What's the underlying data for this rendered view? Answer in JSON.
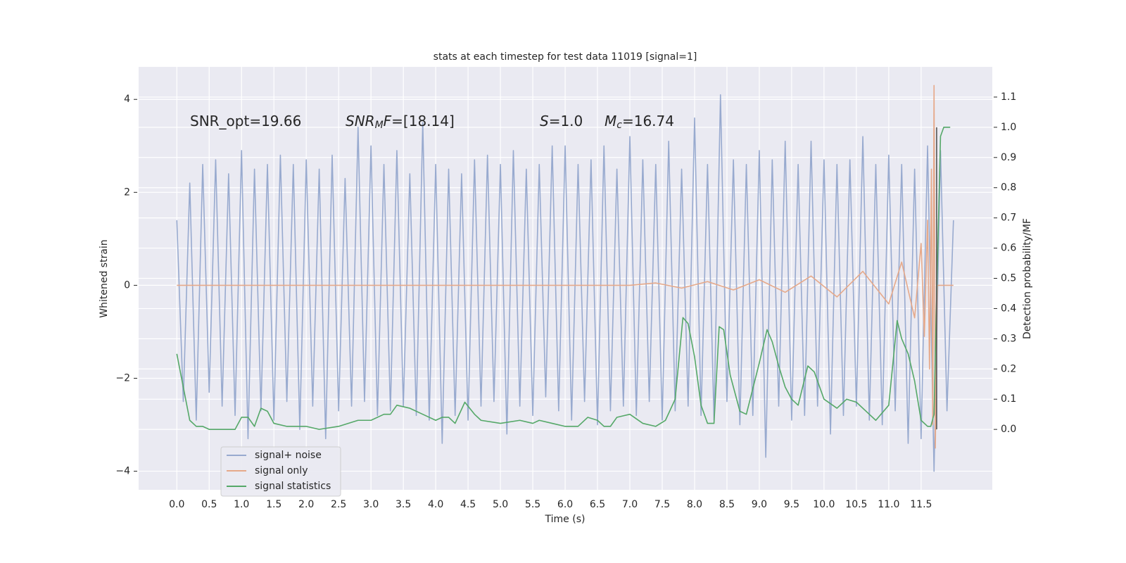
{
  "chart_data": {
    "type": "line",
    "title": "stats at each timestep for test data 11019 [signal=1]",
    "x_label": "Time (s)",
    "y_label": "Whitened strain",
    "y2_label": "Detection probability/MF",
    "xlim": [
      -0.59,
      12.6
    ],
    "ylim": [
      -4.4,
      4.7
    ],
    "y2lim": [
      -0.2,
      1.2
    ],
    "xticks": [
      {
        "value": 0,
        "label": "0.0"
      },
      0.5,
      {
        "value": 1,
        "label": "1.0"
      },
      1.5,
      {
        "value": 2,
        "label": "2.0"
      },
      2.5,
      {
        "value": 3,
        "label": "3.0"
      },
      3.5,
      {
        "value": 4,
        "label": "4.0"
      },
      4.5,
      {
        "value": 5,
        "label": "5.0"
      },
      5.5,
      {
        "value": 6,
        "label": "6.0"
      },
      6.5,
      {
        "value": 7,
        "label": "7.0"
      },
      7.5,
      {
        "value": 8,
        "label": "8.0"
      },
      8.5,
      {
        "value": 9,
        "label": "9.0"
      },
      9.5,
      {
        "value": 10,
        "label": "10.0"
      },
      10.5,
      {
        "value": 11,
        "label": "11.0"
      },
      11.5
    ],
    "yticks": [
      {
        "value": -4,
        "label": "−4"
      },
      {
        "value": -2,
        "label": "−2"
      },
      0,
      2,
      4
    ],
    "y2ticks": [
      {
        "value": 0,
        "label": "0.0"
      },
      0.1,
      0.2,
      0.3,
      0.4,
      0.5,
      0.6,
      0.7,
      0.8,
      0.9,
      {
        "value": 1,
        "label": "1.0"
      },
      1.1
    ],
    "grid": true,
    "legend": "lower left",
    "series": [
      {
        "name": "signal+ noise",
        "color": "#98aacf",
        "x": [
          0,
          0.1,
          0.2,
          0.3,
          0.4,
          0.5,
          0.6,
          0.7,
          0.8,
          0.9,
          1.0,
          1.1,
          1.2,
          1.3,
          1.4,
          1.5,
          1.6,
          1.7,
          1.8,
          1.9,
          2.0,
          2.1,
          2.2,
          2.3,
          2.4,
          2.5,
          2.6,
          2.7,
          2.8,
          2.9,
          3.0,
          3.1,
          3.2,
          3.3,
          3.4,
          3.5,
          3.6,
          3.7,
          3.8,
          3.9,
          4.0,
          4.1,
          4.2,
          4.3,
          4.4,
          4.5,
          4.6,
          4.7,
          4.8,
          4.9,
          5.0,
          5.1,
          5.2,
          5.3,
          5.4,
          5.5,
          5.6,
          5.7,
          5.8,
          5.9,
          6.0,
          6.1,
          6.2,
          6.3,
          6.4,
          6.5,
          6.6,
          6.7,
          6.8,
          6.9,
          7.0,
          7.1,
          7.2,
          7.3,
          7.4,
          7.5,
          7.6,
          7.7,
          7.8,
          7.9,
          8.0,
          8.1,
          8.2,
          8.3,
          8.4,
          8.5,
          8.6,
          8.7,
          8.8,
          8.9,
          9.0,
          9.1,
          9.2,
          9.3,
          9.4,
          9.5,
          9.6,
          9.7,
          9.8,
          9.9,
          10.0,
          10.1,
          10.2,
          10.3,
          10.4,
          10.5,
          10.6,
          10.7,
          10.8,
          10.9,
          11.0,
          11.1,
          11.2,
          11.3,
          11.4,
          11.5,
          11.6,
          11.7,
          11.8,
          11.9,
          12.0
        ],
        "values": [
          1.4,
          -2.5,
          2.2,
          -2.9,
          2.6,
          -2.3,
          2.7,
          -2.6,
          2.4,
          -2.8,
          2.9,
          -3.3,
          2.5,
          -2.7,
          2.6,
          -2.9,
          2.8,
          -2.5,
          2.6,
          -3.1,
          2.7,
          -2.6,
          2.5,
          -3.3,
          2.8,
          -2.7,
          2.3,
          -2.6,
          3.4,
          -2.5,
          3.0,
          -2.8,
          2.6,
          -2.7,
          2.9,
          -2.6,
          2.4,
          -2.8,
          3.5,
          -2.9,
          2.6,
          -3.4,
          2.5,
          -2.8,
          2.4,
          -2.9,
          2.7,
          -2.6,
          2.8,
          -2.5,
          2.6,
          -3.2,
          2.9,
          -2.6,
          2.5,
          -2.8,
          2.6,
          -2.4,
          3.0,
          -2.7,
          3.0,
          -2.9,
          2.6,
          -2.5,
          2.7,
          -3.0,
          3.0,
          -2.7,
          2.5,
          -2.6,
          3.2,
          -2.8,
          2.7,
          -2.5,
          2.6,
          -2.9,
          3.1,
          -2.7,
          2.5,
          -2.6,
          3.6,
          -2.8,
          2.6,
          -2.9,
          4.1,
          -2.5,
          2.7,
          -3.0,
          2.6,
          -2.8,
          2.9,
          -3.7,
          2.7,
          -2.6,
          3.1,
          -2.9,
          2.6,
          -2.8,
          3.1,
          -2.6,
          2.7,
          -3.2,
          2.6,
          -2.8,
          2.7,
          -2.6,
          3.2,
          -2.9,
          2.6,
          -3.0,
          2.8,
          -2.7,
          2.6,
          -3.4,
          2.5,
          -3.3,
          3.0,
          -4.0,
          2.9,
          -2.7,
          1.4
        ]
      },
      {
        "name": "signal only",
        "color": "#e6a98a",
        "x": [
          0,
          7.0,
          7.4,
          7.8,
          8.2,
          8.6,
          9.0,
          9.4,
          9.8,
          10.2,
          10.6,
          11.0,
          11.2,
          11.4,
          11.5,
          11.55,
          11.6,
          11.63,
          11.66,
          11.68,
          11.7,
          11.72,
          11.75,
          12.0
        ],
        "values": [
          0,
          0,
          0.05,
          -0.06,
          0.08,
          -0.1,
          0.12,
          -0.15,
          0.2,
          -0.25,
          0.3,
          -0.4,
          0.5,
          -0.7,
          0.9,
          -1.1,
          1.4,
          -1.8,
          2.5,
          -3.0,
          4.3,
          -3.5,
          0,
          0
        ]
      },
      {
        "name": "signal statistics",
        "color": "#55a868",
        "axis": "y2",
        "x": [
          0,
          0.1,
          0.2,
          0.3,
          0.4,
          0.5,
          0.7,
          0.9,
          1.0,
          1.1,
          1.2,
          1.3,
          1.4,
          1.5,
          1.7,
          2.0,
          2.2,
          2.5,
          2.8,
          3.0,
          3.2,
          3.3,
          3.4,
          3.6,
          3.8,
          4.0,
          4.1,
          4.2,
          4.3,
          4.45,
          4.6,
          4.7,
          5.0,
          5.3,
          5.5,
          5.6,
          5.8,
          6.0,
          6.2,
          6.35,
          6.5,
          6.6,
          6.7,
          6.8,
          7.0,
          7.2,
          7.4,
          7.55,
          7.7,
          7.82,
          7.9,
          8.0,
          8.1,
          8.2,
          8.3,
          8.38,
          8.45,
          8.55,
          8.7,
          8.8,
          9.0,
          9.12,
          9.2,
          9.3,
          9.4,
          9.5,
          9.6,
          9.75,
          9.85,
          10.0,
          10.2,
          10.35,
          10.5,
          10.7,
          10.8,
          11.0,
          11.13,
          11.2,
          11.3,
          11.4,
          11.5,
          11.6,
          11.65,
          11.7,
          11.73,
          11.8,
          11.85,
          11.9,
          11.95
        ],
        "values": [
          0.25,
          0.14,
          0.03,
          0.01,
          0.01,
          0.0,
          0.0,
          0.0,
          0.04,
          0.04,
          0.01,
          0.07,
          0.06,
          0.02,
          0.01,
          0.01,
          0.0,
          0.01,
          0.03,
          0.03,
          0.05,
          0.05,
          0.08,
          0.07,
          0.05,
          0.03,
          0.04,
          0.04,
          0.02,
          0.09,
          0.05,
          0.03,
          0.02,
          0.03,
          0.02,
          0.03,
          0.02,
          0.01,
          0.01,
          0.04,
          0.03,
          0.01,
          0.01,
          0.04,
          0.05,
          0.02,
          0.01,
          0.03,
          0.1,
          0.37,
          0.35,
          0.24,
          0.08,
          0.02,
          0.02,
          0.34,
          0.33,
          0.18,
          0.06,
          0.05,
          0.22,
          0.33,
          0.29,
          0.21,
          0.14,
          0.1,
          0.08,
          0.21,
          0.19,
          0.1,
          0.07,
          0.1,
          0.09,
          0.05,
          0.03,
          0.08,
          0.36,
          0.3,
          0.25,
          0.16,
          0.03,
          0.01,
          0.01,
          0.05,
          0.35,
          0.97,
          1.0,
          1.0,
          1.0
        ]
      }
    ],
    "vline": {
      "x": 11.74,
      "y2": [
        0,
        1
      ],
      "color": "#555555"
    },
    "annotations": [
      [
        {
          "text": "SNR_opt=19.66"
        }
      ],
      [
        {
          "text": "SNR",
          "style": "italic"
        },
        {
          "text": "M",
          "style": "sub"
        },
        {
          "text": "F",
          "style": "italic"
        },
        {
          "text": "=[18.14]"
        }
      ],
      [
        {
          "text": "S",
          "style": "italic"
        },
        {
          "text": "=1.0"
        }
      ],
      [
        {
          "text": "M",
          "style": "italic"
        },
        {
          "text": "c",
          "style": "sub"
        },
        {
          "text": "=16.74"
        }
      ]
    ]
  }
}
